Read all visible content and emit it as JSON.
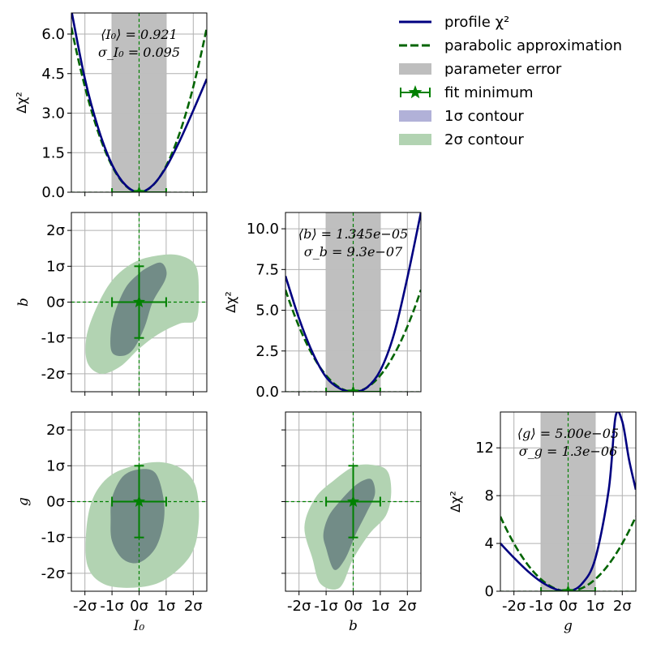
{
  "chart_data": {
    "type": "corner-plot",
    "parameters": [
      {
        "key": "I0",
        "label": "I_0",
        "mean_text": "⟨I₀⟩ = 0.921",
        "sigma_text": "σ_I₀ = 0.095"
      },
      {
        "key": "b",
        "label": "b",
        "mean_text": "⟨b⟩ = 1.345e−05",
        "sigma_text": "σ_b = 9.3e−07"
      },
      {
        "key": "g",
        "label": "g",
        "mean_text": "⟨g⟩ = 5.00e−05",
        "sigma_text": "σ_g = 1.3e−06"
      }
    ],
    "sigma_ticks": [
      "-2σ",
      "-1σ",
      "0σ",
      "1σ",
      "2σ"
    ],
    "sigma_tick_values": [
      -2,
      -1,
      0,
      1,
      2
    ],
    "diag_ylabel": "Δχ²",
    "diagonal": [
      {
        "param": "I0",
        "xlim": [
          -2.5,
          2.5
        ],
        "ylim": [
          0,
          6.8
        ],
        "yticks": [
          0.0,
          1.5,
          3.0,
          4.5,
          6.0
        ],
        "ytick_labels": [
          "0.0",
          "1.5",
          "3.0",
          "4.5",
          "6.0"
        ],
        "profile_x": [
          -2.5,
          -2.0,
          -1.5,
          -1.0,
          -0.5,
          0.0,
          0.5,
          1.0,
          1.5,
          2.0,
          2.5
        ],
        "profile_y": [
          6.9,
          4.3,
          2.4,
          1.05,
          0.27,
          0.0,
          0.26,
          0.95,
          1.95,
          3.1,
          4.3
        ],
        "parabola_scale": 1.0
      },
      {
        "param": "b",
        "xlim": [
          -2.5,
          2.5
        ],
        "ylim": [
          0,
          11
        ],
        "yticks": [
          0.0,
          2.5,
          5.0,
          7.5,
          10.0
        ],
        "ytick_labels": [
          "0.0",
          "2.5",
          "5.0",
          "7.5",
          "10.0"
        ],
        "profile_x": [
          -2.5,
          -2.0,
          -1.5,
          -1.0,
          -0.5,
          0.0,
          0.5,
          1.0,
          1.5,
          2.0,
          2.5
        ],
        "profile_y": [
          7.1,
          4.5,
          2.4,
          0.9,
          0.2,
          0.0,
          0.25,
          1.3,
          3.5,
          7.0,
          11.0
        ],
        "parabola_scale": 1.0
      },
      {
        "param": "g",
        "xlim": [
          -2.5,
          2.5
        ],
        "ylim": [
          0,
          15
        ],
        "yticks": [
          0,
          4,
          8,
          12
        ],
        "ytick_labels": [
          "0",
          "4",
          "8",
          "12"
        ],
        "profile_x": [
          -2.5,
          -2.0,
          -1.5,
          -1.0,
          -0.5,
          0.0,
          0.5,
          1.0,
          1.5,
          1.75,
          2.0,
          2.25,
          2.5
        ],
        "profile_y": [
          4.0,
          2.8,
          1.7,
          0.8,
          0.2,
          0.0,
          0.6,
          2.7,
          8.5,
          14.6,
          14.2,
          11.0,
          8.5
        ],
        "parabola_scale": 1.0
      }
    ],
    "contours": [
      {
        "x": "I0",
        "y": "b",
        "row": 1,
        "col": 0,
        "one_sigma": [
          [
            -1.0,
            -1.4
          ],
          [
            -0.6,
            -1.5
          ],
          [
            -0.2,
            -1.3
          ],
          [
            0.2,
            -0.7
          ],
          [
            0.5,
            0.0
          ],
          [
            0.95,
            0.6
          ],
          [
            1.0,
            0.9
          ],
          [
            0.8,
            1.1
          ],
          [
            0.4,
            1.0
          ],
          [
            0.0,
            0.8
          ],
          [
            -0.5,
            0.4
          ],
          [
            -0.9,
            -0.3
          ],
          [
            -1.05,
            -0.9
          ]
        ],
        "two_sigma": [
          [
            -1.9,
            -1.7
          ],
          [
            -1.4,
            -2.0
          ],
          [
            -0.7,
            -1.8
          ],
          [
            0.0,
            -1.3
          ],
          [
            0.7,
            -0.9
          ],
          [
            1.5,
            -0.6
          ],
          [
            2.1,
            -0.5
          ],
          [
            2.2,
            0.2
          ],
          [
            2.1,
            1.0
          ],
          [
            1.5,
            1.3
          ],
          [
            0.7,
            1.3
          ],
          [
            -0.2,
            1.1
          ],
          [
            -1.0,
            0.6
          ],
          [
            -1.6,
            -0.2
          ],
          [
            -1.95,
            -1.0
          ]
        ]
      },
      {
        "x": "I0",
        "y": "g",
        "row": 2,
        "col": 0,
        "one_sigma": [
          [
            -1.0,
            -1.1
          ],
          [
            -0.6,
            -1.6
          ],
          [
            0.0,
            -1.7
          ],
          [
            0.6,
            -1.3
          ],
          [
            0.9,
            -0.6
          ],
          [
            0.9,
            0.1
          ],
          [
            0.6,
            0.8
          ],
          [
            0.0,
            0.9
          ],
          [
            -0.6,
            0.7
          ],
          [
            -1.0,
            0.1
          ],
          [
            -1.05,
            -0.5
          ]
        ],
        "two_sigma": [
          [
            -1.9,
            -1.8
          ],
          [
            -1.3,
            -2.3
          ],
          [
            -0.2,
            -2.4
          ],
          [
            0.9,
            -2.2
          ],
          [
            1.9,
            -1.5
          ],
          [
            2.2,
            -0.6
          ],
          [
            2.1,
            0.4
          ],
          [
            1.6,
            0.9
          ],
          [
            0.8,
            1.1
          ],
          [
            -0.2,
            1.0
          ],
          [
            -1.1,
            0.7
          ],
          [
            -1.7,
            0.1
          ],
          [
            -1.95,
            -0.8
          ]
        ]
      },
      {
        "x": "b",
        "y": "g",
        "row": 2,
        "col": 1,
        "one_sigma": [
          [
            -1.0,
            -1.3
          ],
          [
            -0.7,
            -1.9
          ],
          [
            -0.3,
            -1.6
          ],
          [
            0.1,
            -0.9
          ],
          [
            0.5,
            -0.3
          ],
          [
            0.8,
            0.2
          ],
          [
            0.7,
            0.6
          ],
          [
            0.4,
            0.6
          ],
          [
            0.0,
            0.4
          ],
          [
            -0.5,
            0.0
          ],
          [
            -0.9,
            -0.4
          ],
          [
            -1.1,
            -0.9
          ]
        ],
        "two_sigma": [
          [
            -1.5,
            -1.6
          ],
          [
            -1.2,
            -2.3
          ],
          [
            -0.5,
            -2.4
          ],
          [
            0.0,
            -1.6
          ],
          [
            0.6,
            -0.9
          ],
          [
            1.2,
            -0.4
          ],
          [
            1.4,
            0.2
          ],
          [
            1.3,
            0.8
          ],
          [
            0.9,
            1.0
          ],
          [
            0.1,
            1.0
          ],
          [
            -0.7,
            0.6
          ],
          [
            -1.4,
            0.1
          ],
          [
            -1.8,
            -0.7
          ]
        ]
      }
    ],
    "legend": [
      {
        "label": "profile χ²",
        "kind": "line-solid",
        "color": "#000080"
      },
      {
        "label": "parabolic approximation",
        "kind": "line-dashed",
        "color": "#006400"
      },
      {
        "label": "parameter error",
        "kind": "patch",
        "color": "#bebebe"
      },
      {
        "label": "fit minimum",
        "kind": "star-errorbar",
        "color": "#008000"
      },
      {
        "label": "1σ contour",
        "kind": "patch",
        "color": "#b1b1d8"
      },
      {
        "label": "2σ contour",
        "kind": "patch",
        "color": "#b2d3b2"
      }
    ],
    "colors": {
      "profile": "#000080",
      "parabola": "#006400",
      "error_band": "#bebebe",
      "minimum": "#008000",
      "sigma1_fill": "#667f7f",
      "sigma2_fill": "#b2d3b2",
      "grid": "#b0b0b0"
    }
  }
}
